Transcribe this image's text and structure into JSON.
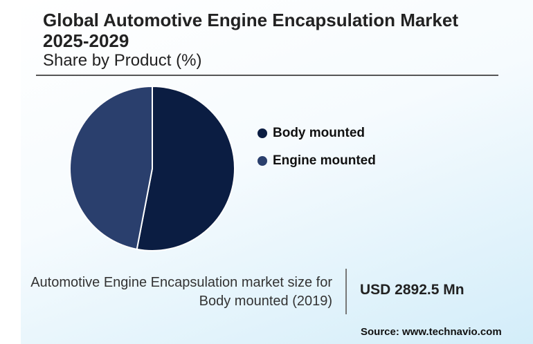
{
  "chart_data": {
    "type": "pie",
    "title": "Global Automotive Engine Encapsulation Market 2025-2029",
    "subtitle": "Share by Product (%)",
    "categories": [
      "Body mounted",
      "Engine mounted"
    ],
    "values": [
      53,
      47
    ],
    "colors": [
      "#0b1d42",
      "#2a3f6d"
    ],
    "legend_position": "right"
  },
  "title_line1": "Global Automotive Engine Encapsulation Market",
  "title_line2": "2025-2029",
  "subtitle": "Share by Product (%)",
  "note_line1": "Automotive Engine Encapsulation market size for",
  "note_line2": "Body mounted (2019)",
  "value": "USD 2892.5 Mn",
  "source": "Source: www.technavio.com"
}
